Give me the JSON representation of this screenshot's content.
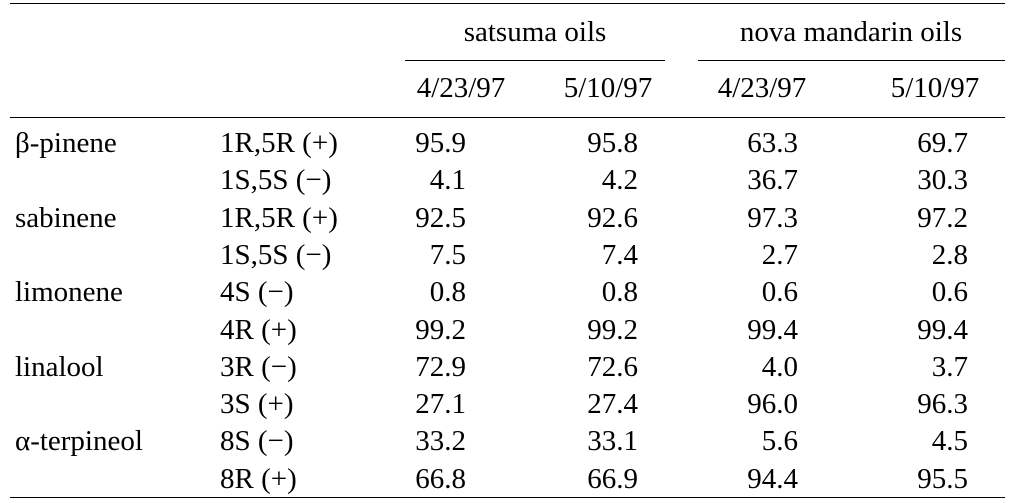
{
  "table": {
    "groups": [
      {
        "label": "satsuma oils",
        "dates": [
          "4/23/97",
          "5/10/97"
        ]
      },
      {
        "label": "nova mandarin oils",
        "dates": [
          "4/23/97",
          "5/10/97"
        ]
      }
    ],
    "rows": [
      {
        "compound": "β-pinene",
        "enantiomers": [
          {
            "label": "1R,5R (+)",
            "values": [
              "95.9",
              "95.8",
              "63.3",
              "69.7"
            ]
          },
          {
            "label": "1S,5S (−)",
            "values": [
              "4.1",
              "4.2",
              "36.7",
              "30.3"
            ]
          }
        ]
      },
      {
        "compound": "sabinene",
        "enantiomers": [
          {
            "label": "1R,5R (+)",
            "values": [
              "92.5",
              "92.6",
              "97.3",
              "97.2"
            ]
          },
          {
            "label": "1S,5S (−)",
            "values": [
              "7.5",
              "7.4",
              "2.7",
              "2.8"
            ]
          }
        ]
      },
      {
        "compound": "limonene",
        "enantiomers": [
          {
            "label": "4S (−)",
            "values": [
              "0.8",
              "0.8",
              "0.6",
              "0.6"
            ]
          },
          {
            "label": "4R (+)",
            "values": [
              "99.2",
              "99.2",
              "99.4",
              "99.4"
            ]
          }
        ]
      },
      {
        "compound": "linalool",
        "enantiomers": [
          {
            "label": "3R (−)",
            "values": [
              "72.9",
              "72.6",
              "4.0",
              "3.7"
            ]
          },
          {
            "label": "3S (+)",
            "values": [
              "27.1",
              "27.4",
              "96.0",
              "96.3"
            ]
          }
        ]
      },
      {
        "compound": "α-terpineol",
        "enantiomers": [
          {
            "label": "8S (−)",
            "values": [
              "33.2",
              "33.1",
              "5.6",
              "4.5"
            ]
          },
          {
            "label": "8R (+)",
            "values": [
              "66.8",
              "66.9",
              "94.4",
              "95.5"
            ]
          }
        ]
      }
    ]
  }
}
